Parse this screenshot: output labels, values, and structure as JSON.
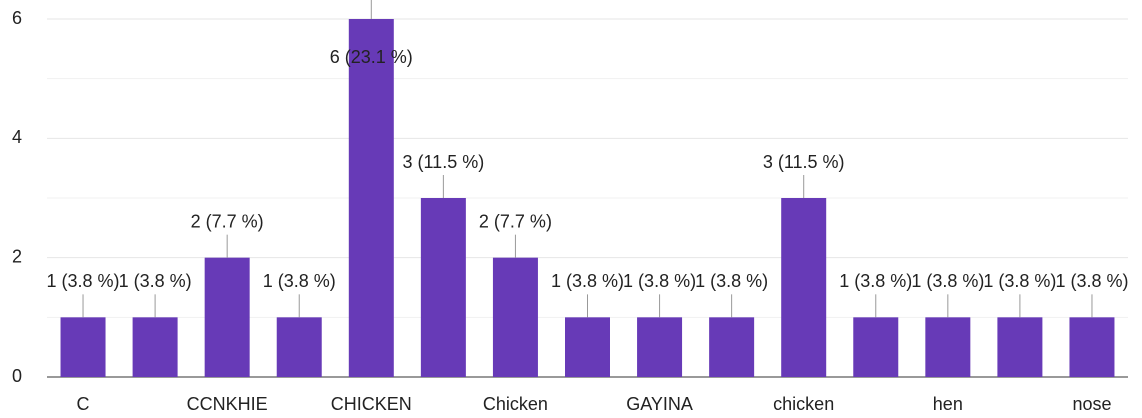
{
  "chart_data": {
    "type": "bar",
    "categories": [
      "C",
      null,
      "CCNKHIE",
      null,
      "CHICKEN",
      null,
      "Chicken",
      null,
      "GAYINA",
      null,
      "chicken",
      null,
      "hen",
      null,
      "nose"
    ],
    "values": [
      1,
      1,
      2,
      1,
      6,
      3,
      2,
      1,
      1,
      1,
      3,
      1,
      1,
      1,
      1
    ],
    "value_labels": [
      "1 (3.8 %)",
      "1 (3.8 %)",
      "2 (7.7 %)",
      "1 (3.8 %)",
      "6 (23.1 %)",
      "3 (11.5 %)",
      "2 (7.7 %)",
      "1 (3.8 %)",
      "1 (3.8 %)",
      "1 (3.8 %)",
      "3 (11.5 %)",
      "1 (3.8 %)",
      "1 (3.8 %)",
      "1 (3.8 %)",
      "1 (3.8 %)"
    ],
    "color": "#673ab7",
    "ylim": [
      0,
      6
    ],
    "yticks": [
      0,
      2,
      4,
      6
    ],
    "minor_yticks": [
      1,
      3,
      5
    ],
    "grid": true
  }
}
